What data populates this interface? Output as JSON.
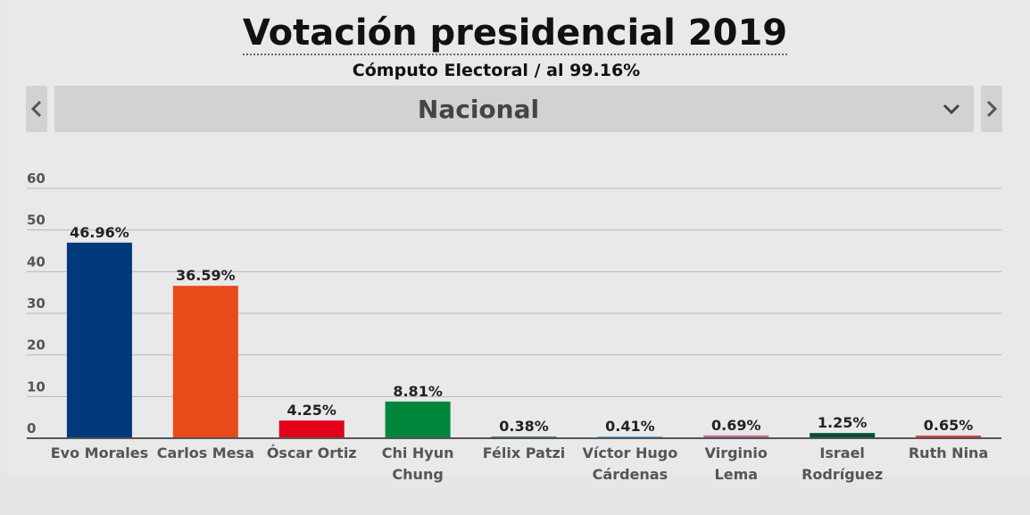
{
  "header": {
    "title": "Votación presidencial 2019",
    "subtitle": "Cómputo Electoral / al 99.16%"
  },
  "selector": {
    "value": "Nacional"
  },
  "colors": {
    "grid": "#b9b9b9",
    "axis": "#555555",
    "text": "#222222",
    "tick": "#555555"
  },
  "chart_data": {
    "type": "bar",
    "categories": [
      [
        "Evo Morales"
      ],
      [
        "Carlos Mesa"
      ],
      [
        "Óscar Ortiz"
      ],
      [
        "Chi Hyun",
        "Chung"
      ],
      [
        "Félix Patzi"
      ],
      [
        "Víctor Hugo",
        "Cárdenas"
      ],
      [
        "Virginio",
        "Lema"
      ],
      [
        "Israel",
        "Rodríguez"
      ],
      [
        "Ruth Nina"
      ]
    ],
    "values": [
      46.96,
      36.59,
      4.25,
      8.81,
      0.38,
      0.41,
      0.69,
      1.25,
      0.65
    ],
    "data_labels": [
      "46.96%",
      "36.59%",
      "4.25%",
      "8.81%",
      "0.38%",
      "0.41%",
      "0.69%",
      "1.25%",
      "0.65%"
    ],
    "bar_colors": [
      "#003a7a",
      "#e84a1a",
      "#e3001b",
      "#00873b",
      "#1a6b3a",
      "#4aa3d6",
      "#c2679b",
      "#004d3a",
      "#d94040"
    ],
    "ylim": [
      0,
      60
    ],
    "yticks": [
      0,
      10,
      20,
      30,
      40,
      50,
      60
    ],
    "grid": true
  }
}
